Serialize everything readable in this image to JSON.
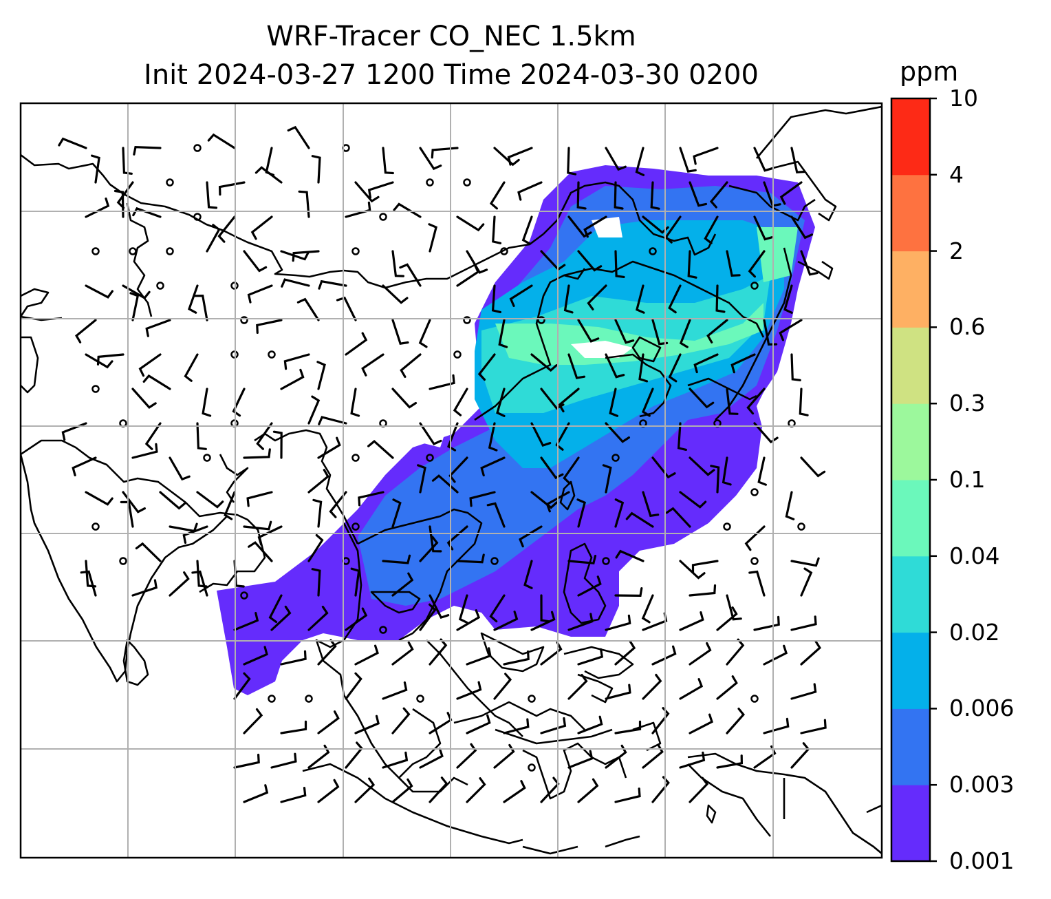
{
  "title_line1": "WRF-Tracer CO_NEC 1.5km",
  "title_line2": "Init 2024-03-27 1200 Time 2024-03-30 0200",
  "colorbar": {
    "unit": "ppm",
    "levels": [
      "0.001",
      "0.003",
      "0.006",
      "0.02",
      "0.04",
      "0.1",
      "0.3",
      "0.6",
      "2",
      "4",
      "10"
    ],
    "colors": [
      "#652cfc",
      "#3374f2",
      "#04b0ea",
      "#2fdbd7",
      "#6bf8bb",
      "#9cf89c",
      "#cfe282",
      "#feb063",
      "#fe7240",
      "#fd2a16"
    ]
  },
  "map": {
    "gridlines": true,
    "plume_colors": [
      "#652cfc",
      "#3374f2",
      "#04b0ea",
      "#2fdbd7",
      "#6bf8bb"
    ],
    "wind_barbs": true
  }
}
